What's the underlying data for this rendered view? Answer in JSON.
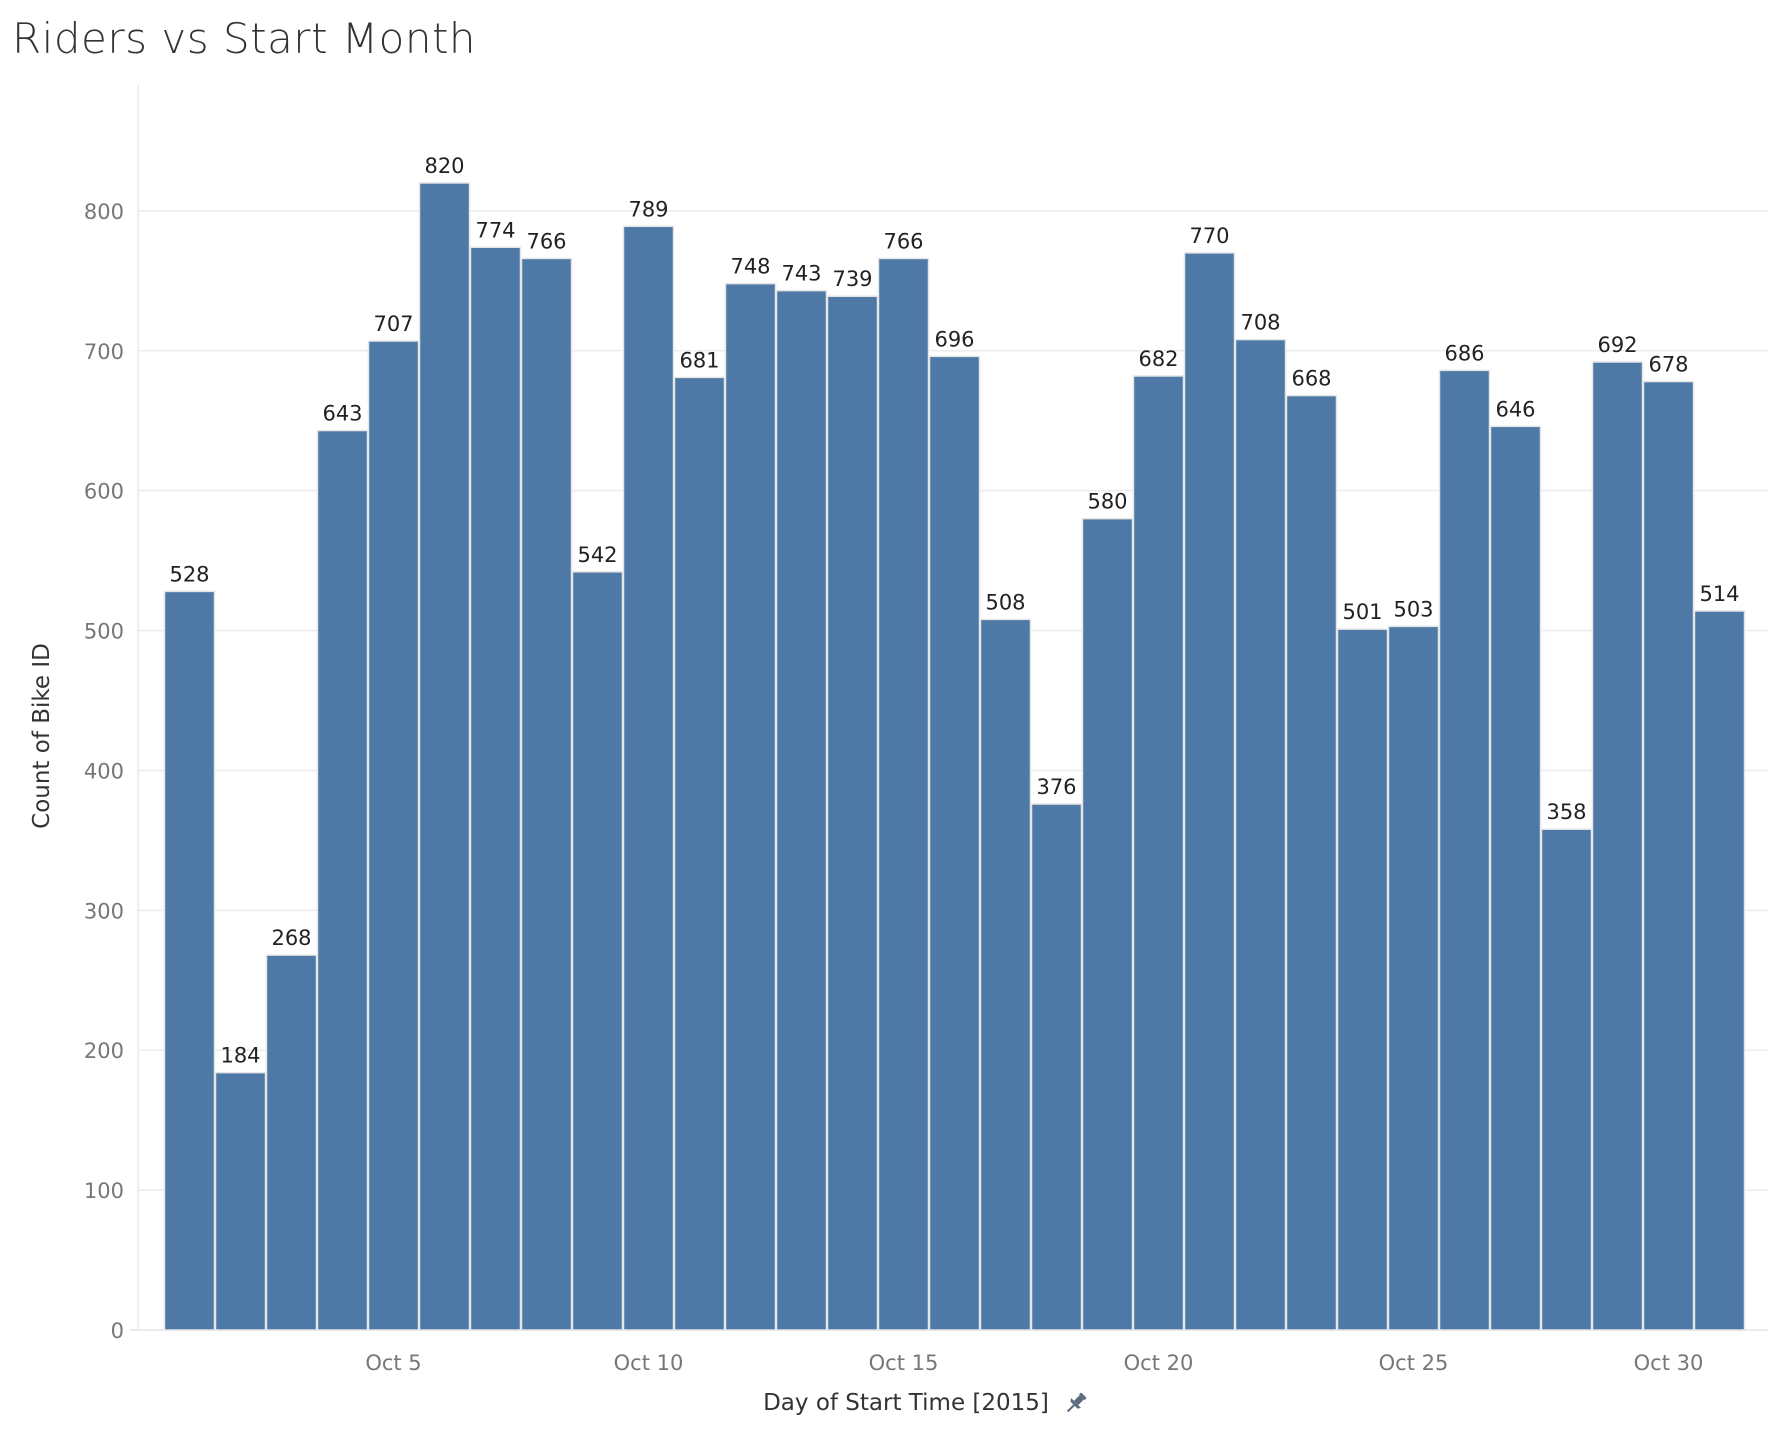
{
  "title": "Riders vs Start Month",
  "chart_data": {
    "type": "bar",
    "title": "Riders vs Start Month",
    "xlabel": "Day of Start Time [2015]",
    "ylabel": "Count of Bike ID",
    "categories": [
      "Oct 1",
      "Oct 2",
      "Oct 3",
      "Oct 4",
      "Oct 5",
      "Oct 6",
      "Oct 7",
      "Oct 8",
      "Oct 9",
      "Oct 10",
      "Oct 11",
      "Oct 12",
      "Oct 13",
      "Oct 14",
      "Oct 15",
      "Oct 16",
      "Oct 17",
      "Oct 18",
      "Oct 19",
      "Oct 20",
      "Oct 21",
      "Oct 22",
      "Oct 23",
      "Oct 24",
      "Oct 25",
      "Oct 26",
      "Oct 27",
      "Oct 28",
      "Oct 29",
      "Oct 30",
      "Oct 31"
    ],
    "values": [
      528,
      184,
      268,
      643,
      707,
      820,
      774,
      766,
      542,
      789,
      681,
      748,
      743,
      739,
      766,
      696,
      508,
      376,
      580,
      682,
      770,
      708,
      668,
      501,
      503,
      686,
      646,
      358,
      692,
      678,
      514
    ],
    "x_ticks": [
      "Oct 5",
      "Oct 10",
      "Oct 15",
      "Oct 20",
      "Oct 25",
      "Oct 30"
    ],
    "y_ticks": [
      0,
      100,
      200,
      300,
      400,
      500,
      600,
      700,
      800
    ],
    "ylim": [
      0,
      890
    ],
    "grid": true,
    "data_labels": true,
    "legend": "none",
    "colors": {
      "bar": "#4e79a7",
      "bar_edge": "#e6e6e6",
      "grid": "#ececec",
      "tick_text": "#777777",
      "label_text": "#222222"
    }
  },
  "icons": {
    "axis_pin": "pin-icon"
  }
}
